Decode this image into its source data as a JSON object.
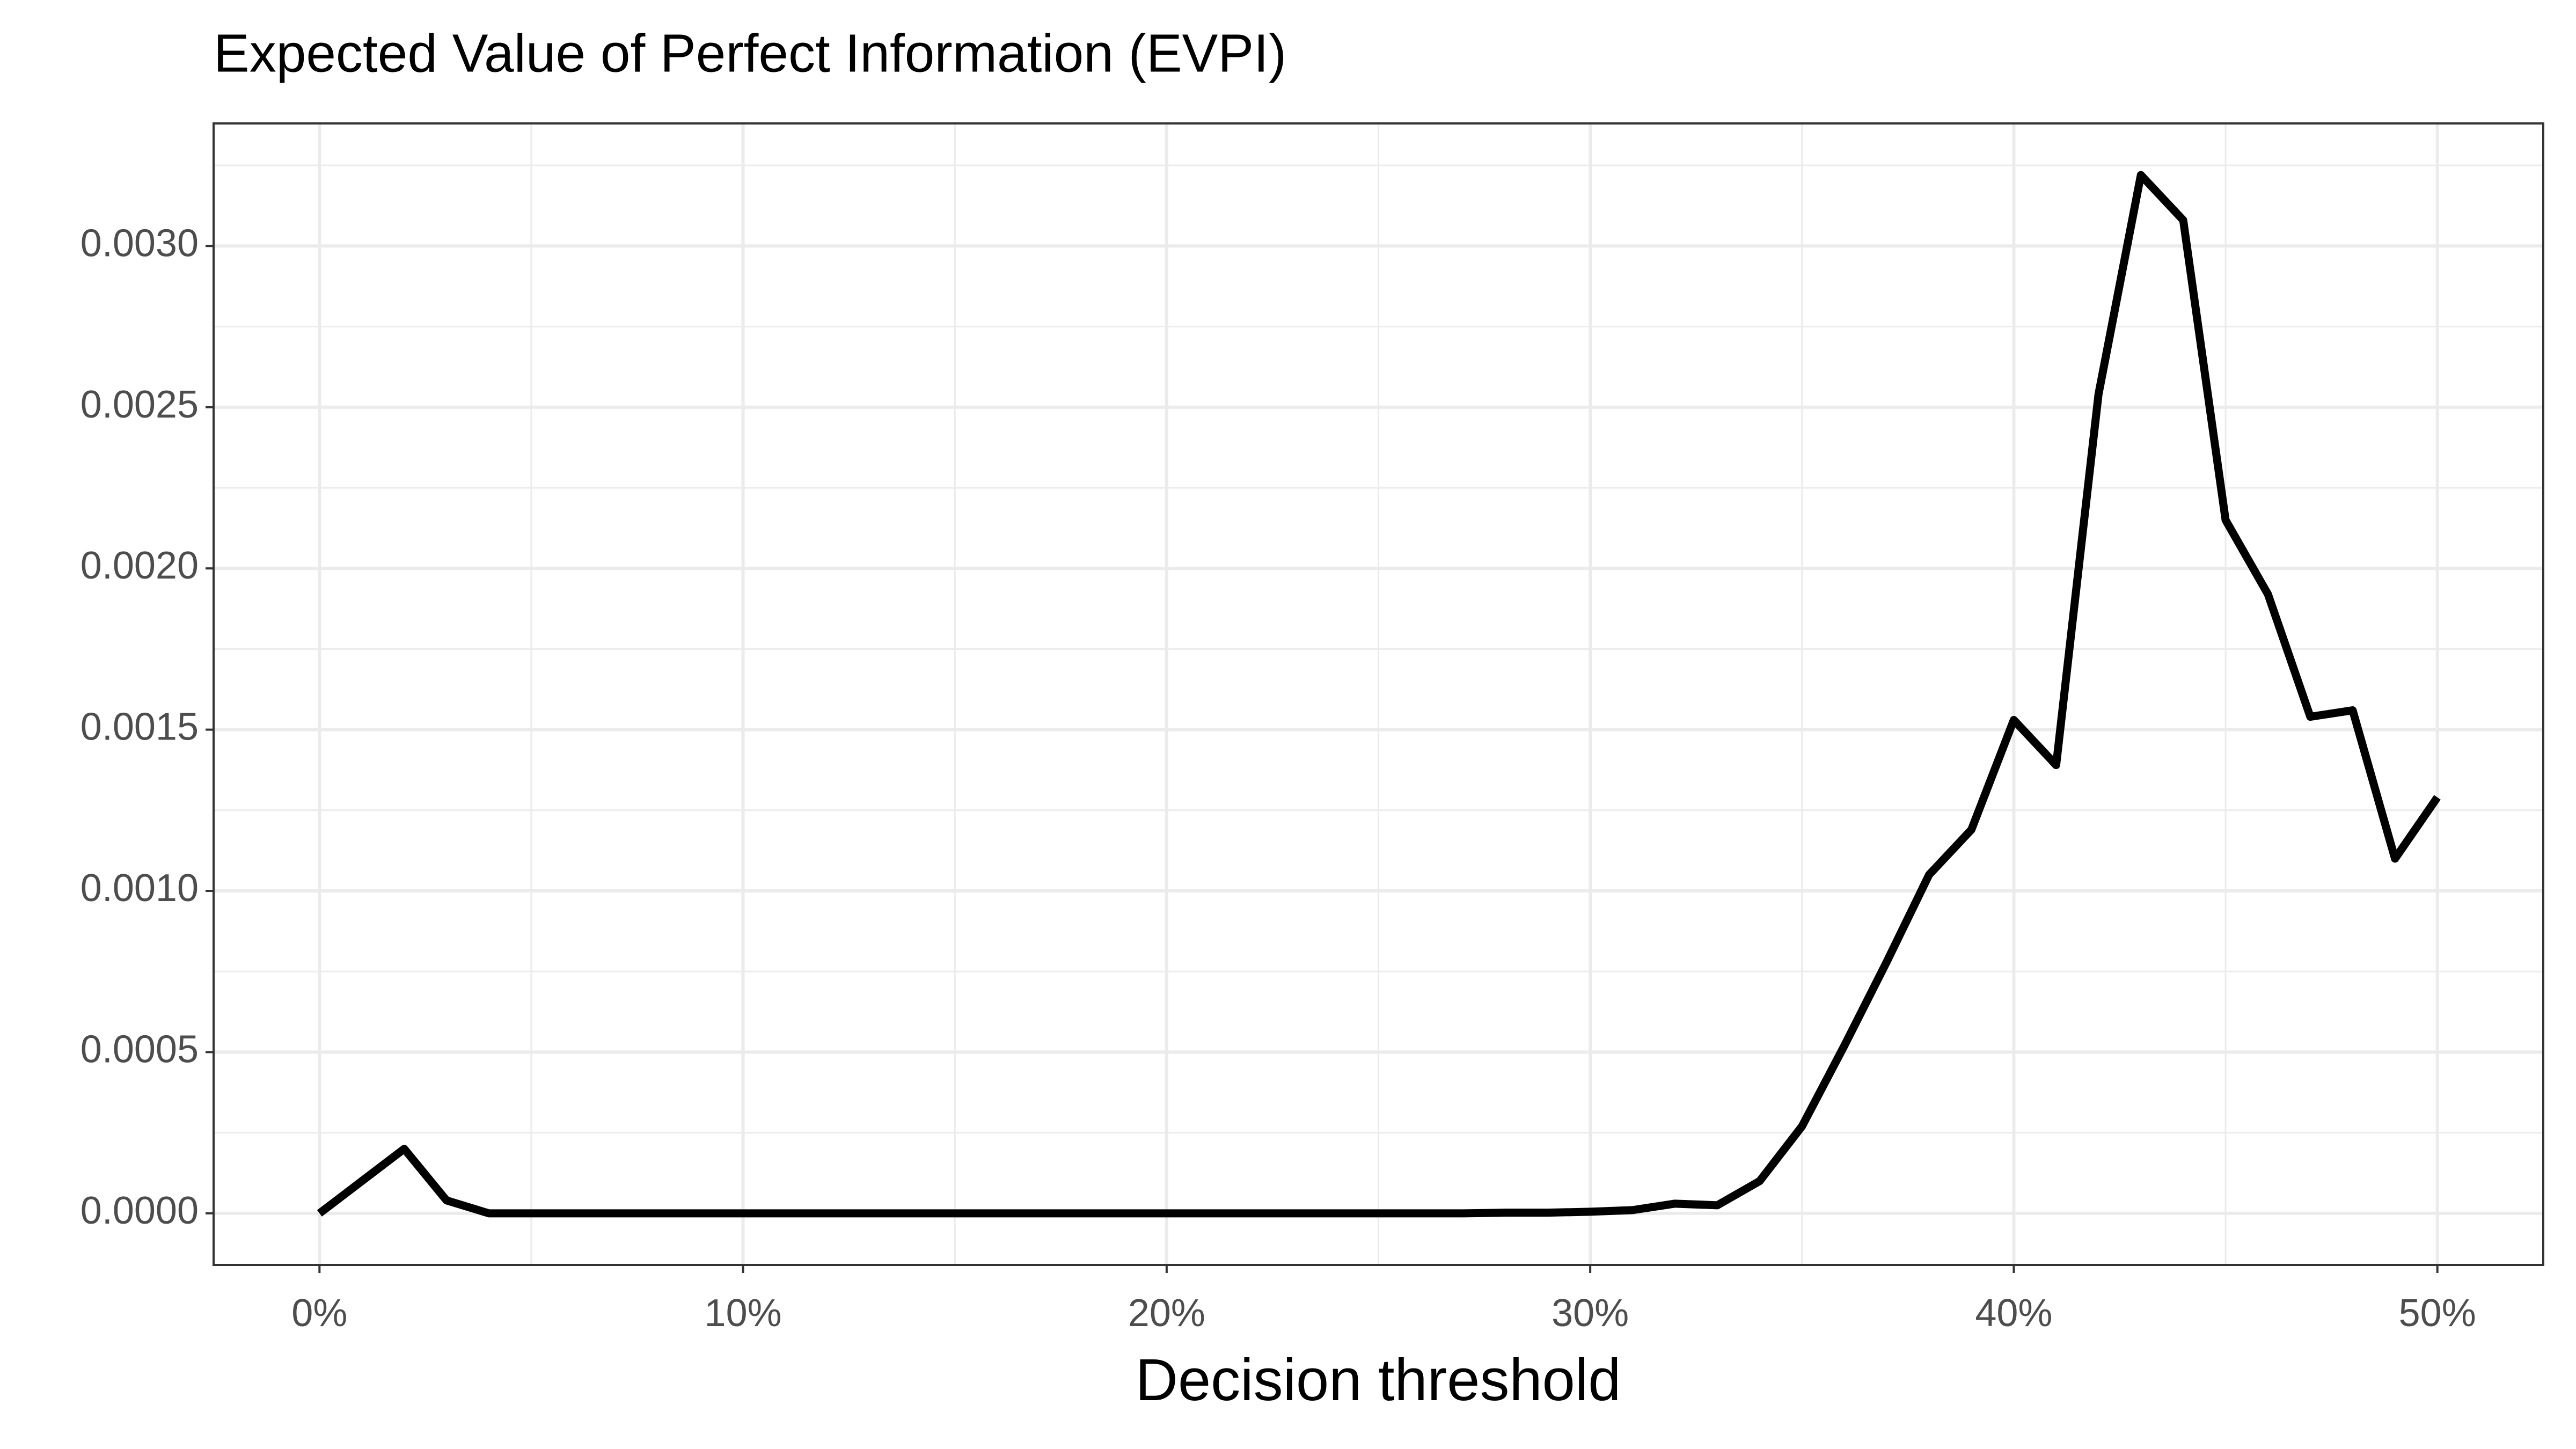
{
  "chart_data": {
    "type": "line",
    "title": "Expected Value of Perfect Information (EVPI)",
    "x_label": "Decision threshold",
    "x": [
      0,
      1,
      2,
      3,
      4,
      5,
      6,
      7,
      8,
      9,
      10,
      11,
      12,
      13,
      14,
      15,
      16,
      17,
      18,
      19,
      20,
      21,
      22,
      23,
      24,
      25,
      26,
      27,
      28,
      29,
      30,
      31,
      32,
      33,
      34,
      35,
      36,
      37,
      38,
      39,
      40,
      41,
      42,
      43,
      44,
      45,
      46,
      47,
      48,
      49,
      50
    ],
    "series": [
      {
        "color": "#000000",
        "values": [
          0,
          0.0001,
          0.0002,
          4e-05,
          0,
          0,
          0,
          0,
          0,
          0,
          0,
          0,
          0,
          0,
          0,
          0,
          0,
          0,
          0,
          0,
          0,
          0,
          0,
          0,
          0,
          0,
          0,
          0,
          2e-06,
          2e-06,
          5e-06,
          1e-05,
          3e-05,
          2.5e-05,
          0.0001,
          0.00027,
          0.00052,
          0.00078,
          0.00105,
          0.00119,
          0.00153,
          0.00139,
          0.00254,
          0.00322,
          0.00308,
          0.00215,
          0.00192,
          0.00154,
          0.00156,
          0.0011,
          0.00129
        ]
      }
    ],
    "xlim": [
      -2.5,
      52.5
    ],
    "ylim": [
      -0.00016,
      0.00338
    ],
    "xticks": [
      {
        "value": 0,
        "label": "0%"
      },
      {
        "value": 10,
        "label": "10%"
      },
      {
        "value": 20,
        "label": "20%"
      },
      {
        "value": 30,
        "label": "30%"
      },
      {
        "value": 40,
        "label": "40%"
      },
      {
        "value": 50,
        "label": "50%"
      }
    ],
    "yticks": [
      {
        "value": 0,
        "label": "0.0000"
      },
      {
        "value": 0.0005,
        "label": "0.0005"
      },
      {
        "value": 0.001,
        "label": "0.0010"
      },
      {
        "value": 0.0015,
        "label": "0.0015"
      },
      {
        "value": 0.002,
        "label": "0.0020"
      },
      {
        "value": 0.0025,
        "label": "0.0025"
      },
      {
        "value": 0.003,
        "label": "0.0030"
      }
    ],
    "grid": true
  }
}
